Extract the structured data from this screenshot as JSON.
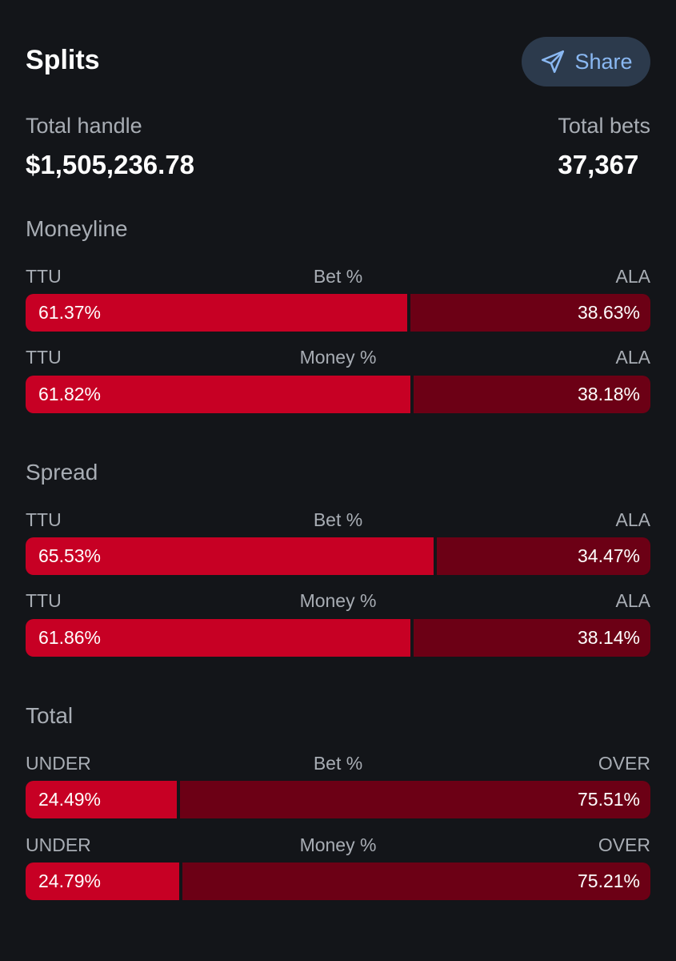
{
  "header": {
    "title": "Splits",
    "share_label": "Share"
  },
  "totals": {
    "handle_label": "Total handle",
    "handle_value": "$1,505,236.78",
    "bets_label": "Total bets",
    "bets_value": "37,367"
  },
  "sections": [
    {
      "title": "Moneyline",
      "rows": [
        {
          "left_label": "TTU",
          "center_label": "Bet %",
          "right_label": "ALA",
          "left_pct": 61.37,
          "left_text": "61.37%",
          "right_text": "38.63%"
        },
        {
          "left_label": "TTU",
          "center_label": "Money %",
          "right_label": "ALA",
          "left_pct": 61.82,
          "left_text": "61.82%",
          "right_text": "38.18%"
        }
      ]
    },
    {
      "title": "Spread",
      "rows": [
        {
          "left_label": "TTU",
          "center_label": "Bet %",
          "right_label": "ALA",
          "left_pct": 65.53,
          "left_text": "65.53%",
          "right_text": "34.47%"
        },
        {
          "left_label": "TTU",
          "center_label": "Money %",
          "right_label": "ALA",
          "left_pct": 61.86,
          "left_text": "61.86%",
          "right_text": "38.14%"
        }
      ]
    },
    {
      "title": "Total",
      "rows": [
        {
          "left_label": "UNDER",
          "center_label": "Bet %",
          "right_label": "OVER",
          "left_pct": 24.49,
          "left_text": "24.49%",
          "right_text": "75.51%"
        },
        {
          "left_label": "UNDER",
          "center_label": "Money %",
          "right_label": "OVER",
          "left_pct": 24.79,
          "left_text": "24.79%",
          "right_text": "75.21%"
        }
      ]
    }
  ],
  "colors": {
    "primary_segment": "#c70024",
    "secondary_segment": "#6c0015",
    "share_bg": "#2c3a4c",
    "share_text": "#8ab8f2"
  },
  "icons": {
    "share": "paper-plane-icon"
  }
}
